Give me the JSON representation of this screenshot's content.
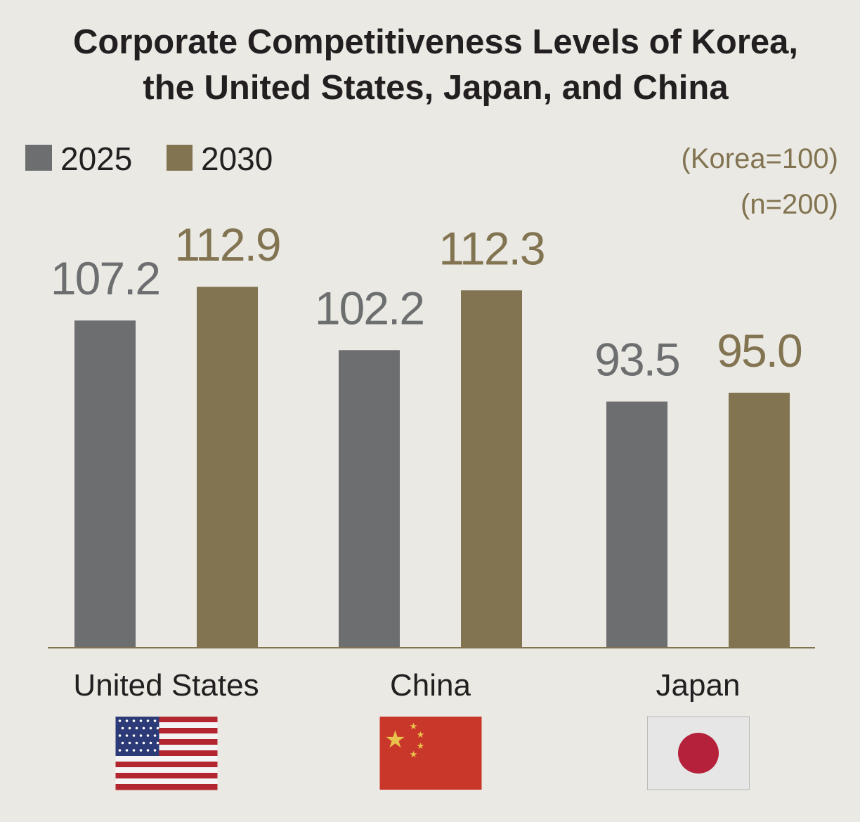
{
  "chart_data": {
    "type": "bar",
    "title_lines": [
      "Corporate Competitiveness Levels of Korea,",
      "the United States, Japan, and China"
    ],
    "notes": [
      "(Korea=100)",
      "(n=200)"
    ],
    "categories": [
      "United States",
      "China",
      "Japan"
    ],
    "category_flags": [
      "us-flag-icon",
      "china-flag-icon",
      "japan-flag-icon"
    ],
    "series": [
      {
        "name": "2025",
        "values": [
          107.2,
          102.2,
          93.5
        ],
        "color": "#6d6e70"
      },
      {
        "name": "2030",
        "values": [
          112.9,
          112.3,
          95.0
        ],
        "color": "#827451"
      }
    ],
    "value_labels": [
      [
        "107.2",
        "102.2",
        "93.5"
      ],
      [
        "112.9",
        "112.3",
        "95.0"
      ]
    ],
    "legend_position": "top-left",
    "grid": false,
    "y_axis_visible": false,
    "background": "#ebe9e4"
  }
}
